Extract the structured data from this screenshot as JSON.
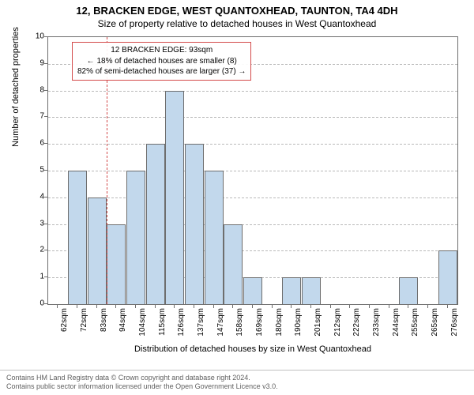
{
  "title": "12, BRACKEN EDGE, WEST QUANTOXHEAD, TAUNTON, TA4 4DH",
  "subtitle": "Size of property relative to detached houses in West Quantoxhead",
  "chart": {
    "type": "histogram",
    "ylabel": "Number of detached properties",
    "xlabel": "Distribution of detached houses by size in West Quantoxhead",
    "ylim": [
      0,
      10
    ],
    "yticks": [
      0,
      1,
      2,
      3,
      4,
      5,
      6,
      7,
      8,
      9,
      10
    ],
    "xticks": [
      "62sqm",
      "72sqm",
      "83sqm",
      "94sqm",
      "104sqm",
      "115sqm",
      "126sqm",
      "137sqm",
      "147sqm",
      "158sqm",
      "169sqm",
      "180sqm",
      "190sqm",
      "201sqm",
      "212sqm",
      "222sqm",
      "233sqm",
      "244sqm",
      "255sqm",
      "265sqm",
      "276sqm"
    ],
    "values": [
      0,
      5,
      4,
      3,
      5,
      6,
      8,
      6,
      5,
      3,
      1,
      0,
      1,
      1,
      0,
      0,
      0,
      0,
      1,
      0,
      2
    ],
    "bar_color": "#c2d8ec",
    "bar_border": "#6e6e6e",
    "grid_color": "#b9b9b9",
    "axis_color": "#6e6e6e",
    "background_color": "#ffffff",
    "bar_width_ratio": 0.98,
    "marker": {
      "position_index": 3,
      "fraction_within": 0.0,
      "color": "#d34a4a"
    },
    "annotation": {
      "line1": "12 BRACKEN EDGE: 93sqm",
      "line2": "← 18% of detached houses are smaller (8)",
      "line3": "82% of semi-detached houses are larger (37) →",
      "border_color": "#d34a4a"
    },
    "title_fontsize": 13,
    "subtitle_fontsize": 12,
    "label_fontsize": 11,
    "tick_fontsize": 10
  },
  "footer": {
    "line1": "Contains HM Land Registry data © Crown copyright and database right 2024.",
    "line2": "Contains public sector information licensed under the Open Government Licence v3.0.",
    "color": "#616161"
  }
}
